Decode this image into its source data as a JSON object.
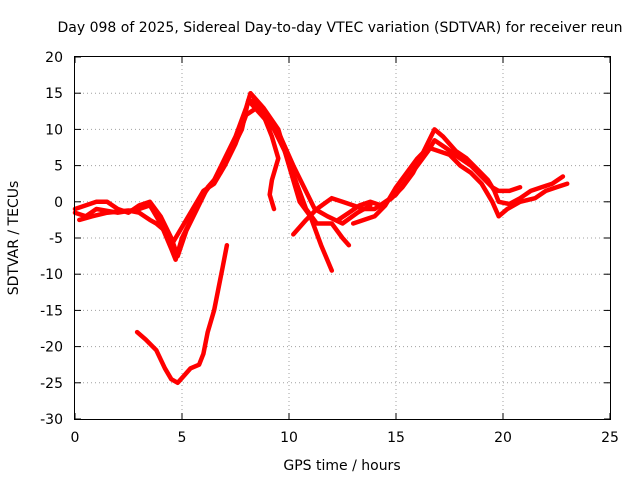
{
  "chart_data": {
    "type": "scatter",
    "title": "Day 098 of 2025, Sidereal Day-to-day VTEC variation (SDTVAR) for receiver reun",
    "xlabel": "GPS time / hours",
    "ylabel": "SDTVAR / TECUs",
    "xlim": [
      0,
      25
    ],
    "ylim": [
      -30,
      20
    ],
    "x_ticks": [
      0,
      5,
      10,
      15,
      20,
      25
    ],
    "y_ticks": [
      -30,
      -25,
      -20,
      -15,
      -10,
      -5,
      0,
      5,
      10,
      15,
      20
    ],
    "grid": true,
    "marker": "+",
    "color": "#ff0000",
    "series": [
      {
        "name": "track-a",
        "points": [
          [
            0,
            -1.5
          ],
          [
            0.5,
            -2
          ],
          [
            1,
            -1
          ],
          [
            2,
            -1.5
          ],
          [
            3,
            -1
          ],
          [
            3.5,
            -0.5
          ],
          [
            4,
            -3
          ],
          [
            4.5,
            -6.5
          ],
          [
            4.7,
            -8
          ],
          [
            5,
            -5
          ],
          [
            5.5,
            -2
          ],
          [
            6,
            1
          ],
          [
            6.5,
            3
          ],
          [
            7,
            6
          ],
          [
            7.5,
            9
          ],
          [
            8,
            13
          ],
          [
            8.2,
            15
          ],
          [
            8.8,
            13
          ],
          [
            9.5,
            10
          ],
          [
            10,
            5
          ],
          [
            10.5,
            0
          ],
          [
            11,
            -2
          ],
          [
            11.5,
            -6
          ],
          [
            12,
            -9.5
          ]
        ]
      },
      {
        "name": "track-b",
        "points": [
          [
            0,
            -1
          ],
          [
            0.5,
            -0.5
          ],
          [
            1,
            0
          ],
          [
            1.5,
            0
          ],
          [
            2,
            -1
          ],
          [
            2.5,
            -1.5
          ],
          [
            3,
            -0.5
          ],
          [
            3.5,
            0
          ],
          [
            4,
            -2
          ],
          [
            4.5,
            -5
          ],
          [
            4.8,
            -7.5
          ],
          [
            5.2,
            -4
          ],
          [
            5.7,
            -1
          ],
          [
            6.2,
            2
          ],
          [
            6.8,
            4
          ],
          [
            7.3,
            7
          ],
          [
            7.8,
            10
          ],
          [
            8.1,
            14
          ],
          [
            8.7,
            12
          ],
          [
            9.3,
            10
          ],
          [
            9.8,
            7
          ],
          [
            10.3,
            3
          ],
          [
            10.8,
            -1
          ],
          [
            11.3,
            -3
          ],
          [
            12,
            -3
          ],
          [
            12.5,
            -5
          ],
          [
            12.8,
            -6
          ]
        ]
      },
      {
        "name": "track-c",
        "points": [
          [
            0.2,
            -2.5
          ],
          [
            0.8,
            -2
          ],
          [
            1.5,
            -1.5
          ],
          [
            2.5,
            -1.2
          ],
          [
            3,
            -1.5
          ],
          [
            3.5,
            -2.5
          ],
          [
            3.8,
            -3
          ],
          [
            4.2,
            -4
          ],
          [
            4.6,
            -5.5
          ],
          [
            5,
            -3.5
          ],
          [
            5.5,
            -1
          ],
          [
            6,
            1.5
          ],
          [
            6.5,
            2.5
          ],
          [
            7,
            5
          ],
          [
            7.5,
            8
          ],
          [
            8,
            12
          ],
          [
            8.5,
            13
          ],
          [
            9,
            11.5
          ],
          [
            9.6,
            9
          ],
          [
            10.2,
            5
          ],
          [
            10.7,
            2
          ],
          [
            11.2,
            -1
          ],
          [
            11.8,
            -2
          ],
          [
            12.5,
            -3
          ],
          [
            13.2,
            -1.5
          ],
          [
            13.8,
            -0.5
          ]
        ]
      },
      {
        "name": "track-d",
        "points": [
          [
            8.3,
            14
          ],
          [
            8.8,
            12
          ],
          [
            9.2,
            9
          ],
          [
            9.5,
            6
          ],
          [
            9.2,
            3
          ],
          [
            9.1,
            1
          ],
          [
            9.3,
            -1
          ]
        ]
      },
      {
        "name": "track-e",
        "points": [
          [
            10.2,
            -4.5
          ],
          [
            10.8,
            -2.5
          ],
          [
            11.3,
            -1
          ],
          [
            12,
            0.5
          ],
          [
            12.5,
            0
          ],
          [
            13,
            -0.5
          ],
          [
            13.5,
            -1
          ],
          [
            14,
            -1
          ],
          [
            14.5,
            0
          ],
          [
            15,
            1
          ],
          [
            15.5,
            3
          ],
          [
            16,
            5
          ],
          [
            16.5,
            7
          ],
          [
            16.8,
            8.5
          ],
          [
            17.3,
            7.5
          ],
          [
            18,
            6
          ],
          [
            18.5,
            5
          ],
          [
            19,
            3.5
          ],
          [
            19.5,
            2
          ],
          [
            19.8,
            1.5
          ],
          [
            20.3,
            1.5
          ],
          [
            20.8,
            2
          ]
        ]
      },
      {
        "name": "track-f",
        "points": [
          [
            12.3,
            -2.5
          ],
          [
            12.8,
            -1.5
          ],
          [
            13.3,
            -0.5
          ],
          [
            13.8,
            0
          ],
          [
            14.3,
            -0.5
          ],
          [
            14.8,
            0.5
          ],
          [
            15.3,
            2
          ],
          [
            15.8,
            4
          ],
          [
            16.3,
            7
          ],
          [
            16.8,
            10
          ],
          [
            17.2,
            9
          ],
          [
            17.8,
            7
          ],
          [
            18.3,
            6
          ],
          [
            18.8,
            4.5
          ],
          [
            19.3,
            3
          ],
          [
            19.6,
            1.5
          ],
          [
            19.8,
            0
          ],
          [
            20.3,
            -0.3
          ],
          [
            20.8,
            0.5
          ],
          [
            21.3,
            1.5
          ],
          [
            21.8,
            2
          ],
          [
            22.3,
            2.5
          ],
          [
            22.8,
            3.5
          ]
        ]
      },
      {
        "name": "track-g",
        "points": [
          [
            13,
            -3
          ],
          [
            13.5,
            -2.5
          ],
          [
            14,
            -2
          ],
          [
            14.5,
            -0.5
          ],
          [
            15,
            2
          ],
          [
            15.5,
            4
          ],
          [
            16,
            6
          ],
          [
            16.5,
            7.5
          ],
          [
            17,
            7
          ],
          [
            17.5,
            6.5
          ],
          [
            18,
            5
          ],
          [
            18.5,
            4
          ],
          [
            19,
            2.5
          ],
          [
            19.5,
            0
          ],
          [
            19.8,
            -2
          ],
          [
            20.2,
            -1
          ],
          [
            20.8,
            0
          ],
          [
            21.5,
            0.5
          ],
          [
            22,
            1.5
          ],
          [
            22.5,
            2
          ],
          [
            23,
            2.5
          ]
        ]
      },
      {
        "name": "track-h",
        "points": [
          [
            2.9,
            -18
          ],
          [
            3.3,
            -19
          ],
          [
            3.8,
            -20.5
          ],
          [
            4.2,
            -23
          ],
          [
            4.5,
            -24.5
          ],
          [
            4.8,
            -25
          ],
          [
            5.1,
            -24
          ],
          [
            5.4,
            -23
          ],
          [
            5.8,
            -22.5
          ],
          [
            6,
            -21
          ],
          [
            6.2,
            -18
          ],
          [
            6.5,
            -15
          ],
          [
            6.7,
            -12
          ],
          [
            6.9,
            -9
          ],
          [
            7.1,
            -6
          ]
        ]
      }
    ]
  }
}
